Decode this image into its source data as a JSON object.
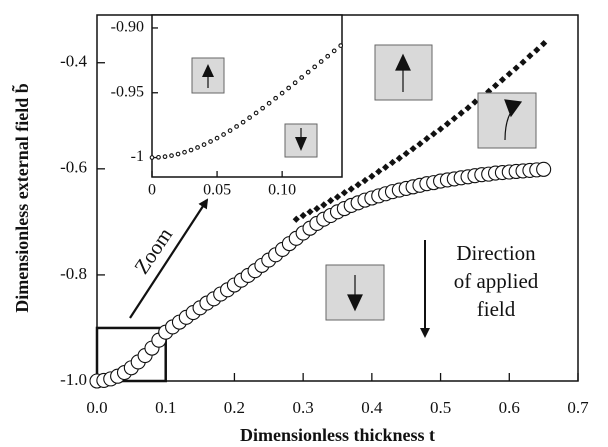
{
  "chart_data": [
    {
      "type": "scatter",
      "xlabel": "Dimensionless thickness t",
      "ylabel": "Dimensionless external field b̃",
      "xlim": [
        0,
        0.7
      ],
      "ylim": [
        -1.0,
        -0.31
      ],
      "xticks": [
        {
          "value": 0,
          "label": "0.0"
        },
        0.1,
        0.2,
        0.3,
        0.4,
        0.5,
        0.6,
        0.7
      ],
      "yticks": [
        {
          "value": -1.0,
          "label": "-1.0"
        },
        -0.8,
        -0.6,
        -0.4
      ],
      "annotations": [
        "Zoom",
        "Direction",
        "of applied",
        "field"
      ],
      "zoom_box": {
        "x": [
          0,
          0.1
        ],
        "y": [
          -1,
          -0.9
        ]
      },
      "series": [
        {
          "color": "#111111",
          "marker": "diamond",
          "x": [
            0.29,
            0.3,
            0.31,
            0.32,
            0.33,
            0.34,
            0.35,
            0.36,
            0.37,
            0.38,
            0.39,
            0.4,
            0.41,
            0.42,
            0.43,
            0.44,
            0.45,
            0.46,
            0.47,
            0.48,
            0.49,
            0.5,
            0.51,
            0.52,
            0.53,
            0.54,
            0.55,
            0.56,
            0.57,
            0.58,
            0.59,
            0.6,
            0.61,
            0.62,
            0.63,
            0.64,
            0.65
          ],
          "values": [
            -0.695,
            -0.688,
            -0.681,
            -0.675,
            -0.668,
            -0.66,
            -0.653,
            -0.645,
            -0.638,
            -0.63,
            -0.622,
            -0.614,
            -0.605,
            -0.597,
            -0.588,
            -0.58,
            -0.571,
            -0.562,
            -0.553,
            -0.543,
            -0.534,
            -0.525,
            -0.515,
            -0.505,
            -0.495,
            -0.485,
            -0.474,
            -0.464,
            -0.454,
            -0.443,
            -0.432,
            -0.421,
            -0.41,
            -0.399,
            -0.387,
            -0.376,
            -0.364
          ]
        },
        {
          "color": "#111111",
          "marker": "circle",
          "x": [
            0.0,
            0.01,
            0.02,
            0.03,
            0.04,
            0.05,
            0.06,
            0.07,
            0.08,
            0.09,
            0.1,
            0.11,
            0.12,
            0.13,
            0.14,
            0.15,
            0.16,
            0.17,
            0.18,
            0.19,
            0.2,
            0.21,
            0.22,
            0.23,
            0.24,
            0.25,
            0.26,
            0.27,
            0.28,
            0.29,
            0.3,
            0.31,
            0.32,
            0.33,
            0.34,
            0.35,
            0.36,
            0.37,
            0.38,
            0.39,
            0.4,
            0.41,
            0.42,
            0.43,
            0.44,
            0.45,
            0.46,
            0.47,
            0.48,
            0.49,
            0.5,
            0.51,
            0.52,
            0.53,
            0.54,
            0.55,
            0.56,
            0.57,
            0.58,
            0.59,
            0.6,
            0.61,
            0.62,
            0.63,
            0.64,
            0.65
          ],
          "values": [
            -1.0,
            -0.999,
            -0.996,
            -0.991,
            -0.984,
            -0.975,
            -0.964,
            -0.952,
            -0.938,
            -0.923,
            -0.908,
            -0.898,
            -0.889,
            -0.88,
            -0.871,
            -0.862,
            -0.853,
            -0.845,
            -0.836,
            -0.828,
            -0.819,
            -0.81,
            -0.801,
            -0.792,
            -0.782,
            -0.772,
            -0.762,
            -0.752,
            -0.741,
            -0.731,
            -0.721,
            -0.712,
            -0.703,
            -0.695,
            -0.688,
            -0.681,
            -0.675,
            -0.669,
            -0.664,
            -0.659,
            -0.655,
            -0.651,
            -0.647,
            -0.643,
            -0.64,
            -0.637,
            -0.634,
            -0.631,
            -0.628,
            -0.626,
            -0.623,
            -0.621,
            -0.619,
            -0.617,
            -0.615,
            -0.613,
            -0.611,
            -0.61,
            -0.608,
            -0.607,
            -0.606,
            -0.605,
            -0.604,
            -0.603,
            -0.602,
            -0.601
          ]
        }
      ]
    },
    {
      "type": "scatter",
      "xlim": [
        0,
        0.146
      ],
      "ylim": [
        -1.015,
        -0.89
      ],
      "xticks": [
        0,
        0.05,
        {
          "value": 0.1,
          "label": "0.10"
        }
      ],
      "yticks": [
        -1,
        -0.95,
        {
          "value": -0.9,
          "label": "-0.90"
        }
      ],
      "series": [
        {
          "color": "#111111",
          "marker": "small-circle",
          "x": [
            0,
            0.005,
            0.01,
            0.015,
            0.02,
            0.025,
            0.03,
            0.035,
            0.04,
            0.045,
            0.05,
            0.055,
            0.06,
            0.065,
            0.07,
            0.075,
            0.08,
            0.085,
            0.09,
            0.095,
            0.1,
            0.105,
            0.11,
            0.115,
            0.12,
            0.125,
            0.13,
            0.135,
            0.14,
            0.145
          ],
          "values": [
            -1,
            -0.9998,
            -0.9993,
            -0.9985,
            -0.9973,
            -0.9959,
            -0.9942,
            -0.9922,
            -0.99,
            -0.9876,
            -0.985,
            -0.9822,
            -0.9792,
            -0.976,
            -0.9727,
            -0.9692,
            -0.9656,
            -0.9619,
            -0.9581,
            -0.9542,
            -0.9503,
            -0.9463,
            -0.9423,
            -0.9382,
            -0.9341,
            -0.93,
            -0.9259,
            -0.9218,
            -0.9177,
            -0.9136
          ]
        }
      ]
    }
  ]
}
